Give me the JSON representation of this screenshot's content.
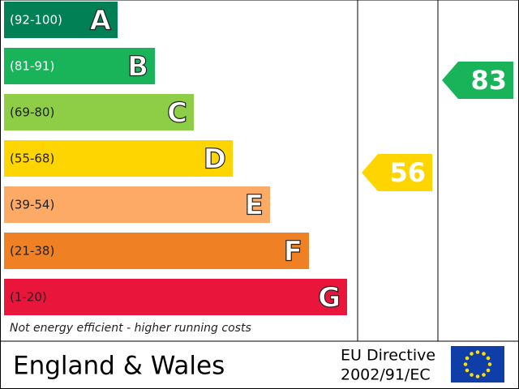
{
  "chart_data": {
    "type": "epc",
    "bands": [
      {
        "range": "(92-100)",
        "letter": "A",
        "color": "#008054"
      },
      {
        "range": "(81-91)",
        "letter": "B",
        "color": "#19b459"
      },
      {
        "range": "(69-80)",
        "letter": "C",
        "color": "#8dce46"
      },
      {
        "range": "(55-68)",
        "letter": "D",
        "color": "#ffd500"
      },
      {
        "range": "(39-54)",
        "letter": "E",
        "color": "#fcaa65"
      },
      {
        "range": "(21-38)",
        "letter": "F",
        "color": "#ef8023"
      },
      {
        "range": "(1-20)",
        "letter": "G",
        "color": "#e9153b"
      }
    ],
    "current": {
      "value": 56,
      "color": "#ffd500"
    },
    "potential": {
      "value": 83,
      "color": "#19b459"
    },
    "footnote": "Not energy efficient - higher running costs",
    "region": "England & Wales",
    "directive": [
      "EU Directive",
      "2002/91/EC"
    ]
  }
}
